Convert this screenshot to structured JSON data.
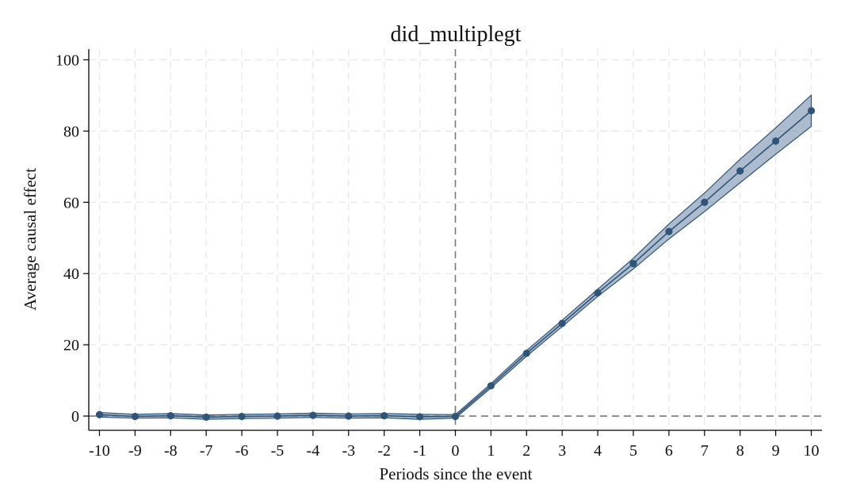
{
  "chart_data": {
    "type": "line",
    "title": "did_multiplegt",
    "xlabel": "Periods since the event",
    "ylabel": "Average causal effect",
    "xlim": [
      -10.3,
      10.3
    ],
    "ylim": [
      -4,
      103
    ],
    "x_ticks": [
      -10,
      -9,
      -8,
      -7,
      -6,
      -5,
      -4,
      -3,
      -2,
      -1,
      0,
      1,
      2,
      3,
      4,
      5,
      6,
      7,
      8,
      9,
      10
    ],
    "y_ticks": [
      0,
      20,
      40,
      60,
      80,
      100
    ],
    "grid": true,
    "reference_lines": {
      "x": 0,
      "y": 0,
      "style": "dashed"
    },
    "series": [
      {
        "x": [
          -10,
          -9,
          -8,
          -7,
          -6,
          -5,
          -4,
          -3,
          -2,
          -1,
          0,
          1,
          2,
          3,
          4,
          5,
          6,
          7,
          8,
          9,
          10
        ],
        "y": [
          0.4,
          -0.1,
          0.1,
          -0.3,
          -0.1,
          0.0,
          0.2,
          0.0,
          0.1,
          -0.2,
          -0.1,
          8.5,
          17.6,
          26.0,
          34.6,
          42.8,
          51.8,
          60.0,
          68.8,
          77.2,
          85.7
        ],
        "ci_lower": [
          -0.3,
          -0.6,
          -0.5,
          -0.9,
          -0.7,
          -0.6,
          -0.4,
          -0.6,
          -0.5,
          -0.9,
          -0.6,
          7.9,
          16.8,
          25.1,
          33.6,
          41.3,
          49.7,
          57.4,
          65.5,
          73.5,
          81.3
        ],
        "ci_upper": [
          1.0,
          0.5,
          0.7,
          0.3,
          0.5,
          0.6,
          0.8,
          0.6,
          0.7,
          0.5,
          0.4,
          9.1,
          18.4,
          26.9,
          35.6,
          44.3,
          53.9,
          62.6,
          72.1,
          80.9,
          90.1
        ],
        "color": "#2f5479",
        "band_color": "#7f98b3"
      }
    ]
  }
}
